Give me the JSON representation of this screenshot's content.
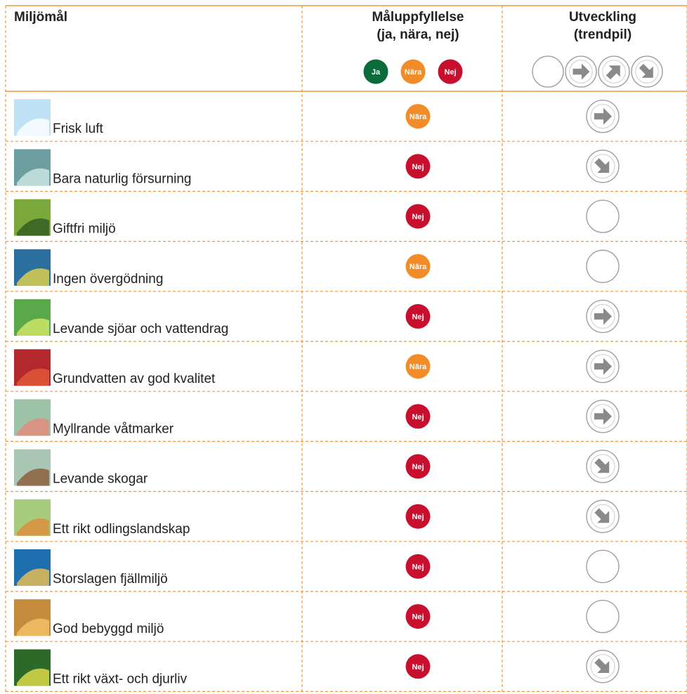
{
  "header": {
    "columns": [
      {
        "lines": [
          "Miljömål"
        ]
      },
      {
        "lines": [
          "Måluppfyllelse",
          "(ja, nära, nej)"
        ]
      },
      {
        "lines": [
          "Utveckling",
          "(trendpil)"
        ]
      }
    ],
    "legend": [
      "Ja",
      "Nära",
      "Nej"
    ]
  },
  "rows": [
    {
      "name": "Frisk luft",
      "status": "Nära"
    },
    {
      "name": "Bara naturlig försurning",
      "status": "Nej"
    },
    {
      "name": "Giftfri miljö",
      "status": "Nej"
    },
    {
      "name": "Ingen övergödning",
      "status": "Nära"
    },
    {
      "name": "Levande sjöar och vattendrag",
      "status": "Nej"
    },
    {
      "name": "Grundvatten av god kvalitet",
      "status": "Nära"
    },
    {
      "name": "Myllrande våtmarker",
      "status": "Nej"
    },
    {
      "name": "Levande skogar",
      "status": "Nej"
    },
    {
      "name": "Ett rikt odlingslandskap",
      "status": "Nej"
    },
    {
      "name": "Storslagen fjällmiljö",
      "status": "Nej"
    },
    {
      "name": "God bebyggd miljö",
      "status": "Nej"
    },
    {
      "name": "Ett rikt växt- och djurliv",
      "status": "Nej"
    }
  ]
}
